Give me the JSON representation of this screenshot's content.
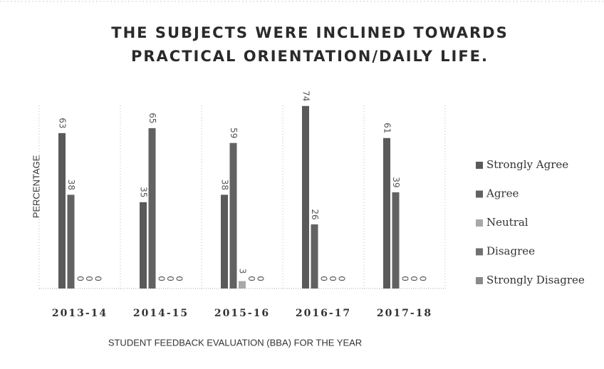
{
  "chart_data": {
    "type": "bar",
    "title": [
      "THE SUBJECTS WERE INCLINED TOWARDS",
      "PRACTICAL ORIENTATION/DAILY LIFE."
    ],
    "x_label": "STUDENT FEEDBACK  EVALUATION (BBA) FOR THE YEAR",
    "y_label": "PERCENTAGE",
    "categories": [
      "2013-14",
      "2014-15",
      "2015-16",
      "2016-17",
      "2017-18"
    ],
    "series": [
      {
        "name": "Strongly Agree",
        "color": "#5a5a5a",
        "values": [
          63,
          35,
          38,
          74,
          61
        ]
      },
      {
        "name": "Agree",
        "color": "#626262",
        "values": [
          38,
          65,
          59,
          26,
          39
        ]
      },
      {
        "name": "Neutral",
        "color": "#a8a8a8",
        "values": [
          0,
          0,
          3,
          0,
          0
        ]
      },
      {
        "name": "Disagree",
        "color": "#707070",
        "values": [
          0,
          0,
          0,
          0,
          0
        ]
      },
      {
        "name": "Strongly Disagree",
        "color": "#8a8a8a",
        "values": [
          0,
          0,
          0,
          0,
          0
        ]
      }
    ],
    "ylim": [
      0,
      80
    ],
    "legend": "right"
  }
}
